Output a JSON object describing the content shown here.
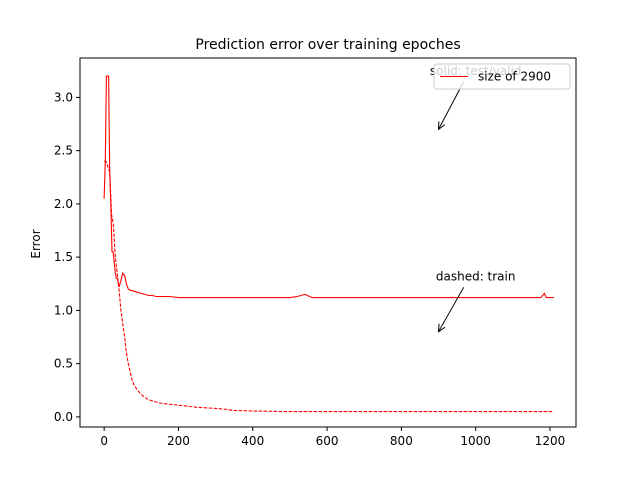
{
  "chart_data": {
    "type": "line",
    "title": "Prediction error over training epoches",
    "xlabel": "",
    "ylabel": "Error",
    "xlim": [
      -65,
      1270
    ],
    "ylim": [
      -0.095,
      3.37
    ],
    "xticks": [
      0,
      200,
      400,
      600,
      800,
      1000,
      1200
    ],
    "yticks": [
      0.0,
      0.5,
      1.0,
      1.5,
      2.0,
      2.5,
      3.0
    ],
    "grid": false,
    "legend_position": "top-right",
    "legend": [
      {
        "label": "size of 2900",
        "color": "#ff0000",
        "style": "solid"
      }
    ],
    "annotations": [
      {
        "text": "solid: test/valid",
        "text_x": 1000,
        "text_y": 3.25,
        "arrow_to_x": 900,
        "arrow_to_y": 2.7
      },
      {
        "text": "dashed: train",
        "text_x": 1000,
        "text_y": 1.32,
        "arrow_to_x": 900,
        "arrow_to_y": 0.8
      }
    ],
    "series": [
      {
        "color": "#ff0000",
        "style": "solid",
        "x": [
          0,
          3,
          6,
          9,
          12,
          15,
          18,
          21,
          24,
          27,
          30,
          33,
          36,
          40,
          45,
          50,
          55,
          60,
          65,
          70,
          80,
          90,
          100,
          110,
          120,
          130,
          140,
          150,
          175,
          200,
          250,
          300,
          350,
          400,
          450,
          500,
          520,
          540,
          560,
          600,
          650,
          700,
          800,
          900,
          1000,
          1050,
          1100,
          1150,
          1175,
          1185,
          1190,
          1200,
          1210
        ],
        "y": [
          2.05,
          2.4,
          3.2,
          3.2,
          3.2,
          2.3,
          2.0,
          1.55,
          1.55,
          1.45,
          1.35,
          1.3,
          1.3,
          1.22,
          1.28,
          1.35,
          1.33,
          1.25,
          1.2,
          1.19,
          1.18,
          1.17,
          1.16,
          1.15,
          1.14,
          1.14,
          1.13,
          1.13,
          1.13,
          1.12,
          1.12,
          1.12,
          1.12,
          1.12,
          1.12,
          1.12,
          1.13,
          1.15,
          1.12,
          1.12,
          1.12,
          1.12,
          1.12,
          1.12,
          1.12,
          1.12,
          1.12,
          1.12,
          1.12,
          1.16,
          1.12,
          1.12,
          1.12
        ]
      },
      {
        "color": "#ff0000",
        "style": "dashed",
        "x": [
          0,
          5,
          10,
          15,
          20,
          25,
          30,
          35,
          40,
          45,
          50,
          55,
          60,
          65,
          70,
          75,
          80,
          90,
          100,
          110,
          120,
          130,
          140,
          150,
          170,
          200,
          250,
          300,
          330,
          350,
          400,
          500,
          600,
          700,
          800,
          900,
          1000,
          1100,
          1210
        ],
        "y": [
          2.4,
          2.4,
          2.35,
          2.3,
          1.9,
          1.8,
          1.5,
          1.35,
          1.2,
          1.0,
          0.88,
          0.75,
          0.6,
          0.5,
          0.42,
          0.35,
          0.3,
          0.25,
          0.21,
          0.18,
          0.16,
          0.15,
          0.14,
          0.13,
          0.12,
          0.11,
          0.09,
          0.08,
          0.07,
          0.06,
          0.055,
          0.05,
          0.05,
          0.05,
          0.05,
          0.05,
          0.05,
          0.05,
          0.05
        ]
      }
    ]
  }
}
